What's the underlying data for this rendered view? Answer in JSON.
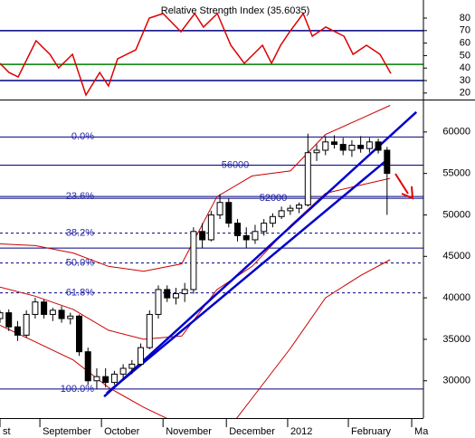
{
  "chart_data": [
    {
      "type": "line",
      "title": "Relative Strength Index (35.6035)",
      "x": [
        0,
        3.1,
        6.2,
        12.3,
        17,
        20,
        24.7,
        29.3,
        34,
        37,
        40.1,
        46.3,
        50.9,
        55.6,
        61.7,
        66.4,
        69.4,
        74.1,
        78.7,
        83.3,
        89.5,
        92.6,
        95.7,
        98.8,
        103.4,
        106.5,
        111.1,
        117.3,
        120.4,
        125,
        129.6,
        133.3
      ],
      "values": [
        43.8,
        36.5,
        32.9,
        61.9,
        51,
        40.1,
        51,
        18.4,
        36.5,
        25.7,
        47.4,
        54.6,
        80,
        83.6,
        69.1,
        83.6,
        72.8,
        83.6,
        58.3,
        43.8,
        58.3,
        43.8,
        58.3,
        69.1,
        83.6,
        65.5,
        72.8,
        65.5,
        51,
        58.3,
        51,
        35.6
      ],
      "color": "#dd0000",
      "xlim": [
        0,
        144.4
      ],
      "ylim": [
        14.8,
        94.5
      ],
      "yticks": [
        80,
        70,
        60,
        50,
        40,
        30,
        20
      ],
      "levels": [
        {
          "value": 70,
          "color": "#000080"
        },
        {
          "value": 30,
          "color": "#000080"
        },
        {
          "value": 43,
          "color": "#008000"
        }
      ]
    },
    {
      "type": "candlestick",
      "x": [
        0,
        3,
        6,
        9,
        12,
        15,
        18,
        21,
        24,
        27,
        30,
        33,
        36,
        39,
        42,
        45,
        48,
        51,
        54,
        57,
        60,
        63,
        66,
        69,
        72,
        75,
        78,
        81,
        84,
        87,
        90,
        93,
        96,
        99,
        102,
        105,
        108,
        111,
        114,
        117,
        120,
        123,
        126,
        129,
        132
      ],
      "open": [
        37500,
        38200,
        36500,
        35500,
        38000,
        39500,
        38000,
        38500,
        37500,
        37800,
        33500,
        30000,
        30500,
        29800,
        30800,
        31500,
        32000,
        34000,
        38000,
        41000,
        40000,
        40500,
        41000,
        48000,
        47000,
        50000,
        51500,
        49000,
        47500,
        47000,
        48000,
        49000,
        49800,
        50500,
        50800,
        51200,
        57500,
        57800,
        58800,
        58500,
        57800,
        58400,
        58000,
        58800,
        57800
      ],
      "high": [
        38500,
        38600,
        37200,
        38500,
        40000,
        39800,
        38800,
        39000,
        38200,
        38000,
        34000,
        31500,
        31500,
        31200,
        32000,
        32500,
        34500,
        38500,
        41500,
        41500,
        41200,
        41800,
        48500,
        49000,
        50500,
        52500,
        52000,
        49500,
        48500,
        48800,
        49500,
        50200,
        51000,
        51200,
        51500,
        59800,
        58500,
        59500,
        59600,
        59300,
        59000,
        59500,
        59300,
        59200,
        58200
      ],
      "low": [
        37000,
        36000,
        34800,
        35200,
        37500,
        37500,
        37200,
        37000,
        36800,
        33000,
        29500,
        29000,
        29200,
        29500,
        30200,
        30800,
        31800,
        33800,
        37500,
        39500,
        39200,
        39500,
        40500,
        46000,
        46800,
        49500,
        48500,
        46800,
        46000,
        46500,
        47500,
        48500,
        49500,
        50000,
        50200,
        51000,
        56500,
        57200,
        58000,
        57200,
        57000,
        57500,
        57500,
        57400,
        50000
      ],
      "close": [
        38200,
        36500,
        35500,
        38000,
        39500,
        38000,
        38500,
        37500,
        37800,
        33500,
        30000,
        30500,
        29800,
        30800,
        31500,
        32000,
        34000,
        38000,
        41000,
        40000,
        40500,
        41000,
        48000,
        47000,
        50000,
        51500,
        49000,
        47500,
        47000,
        48000,
        49000,
        49800,
        50500,
        50800,
        51200,
        57500,
        57800,
        58800,
        58500,
        57800,
        58400,
        58000,
        58800,
        57800,
        55000
      ],
      "bands": [
        {
          "x": [
            0,
            12,
            25,
            37,
            49,
            62,
            74,
            86,
            99,
            111,
            123,
            133
          ],
          "values": [
            46500,
            46300,
            45400,
            43800,
            43200,
            44100,
            52200,
            54700,
            55300,
            59700,
            61600,
            63200
          ],
          "color": "#cc0000"
        },
        {
          "x": [
            0,
            12,
            25,
            37,
            49,
            62,
            74,
            86,
            99,
            111,
            123,
            133
          ],
          "values": [
            41300,
            40200,
            38600,
            36100,
            35000,
            35400,
            41000,
            43800,
            48700,
            52600,
            53600,
            54400
          ],
          "color": "#cc0000"
        },
        {
          "x": [
            0,
            12,
            25,
            37,
            49,
            62,
            74,
            86,
            99,
            111,
            123,
            133
          ],
          "values": [
            36700,
            34700,
            32500,
            29200,
            26800,
            24600,
            22400,
            27900,
            33900,
            40000,
            42700,
            44600
          ],
          "color": "#cc0000"
        }
      ],
      "trendlines": [
        {
          "x": [
            35.5,
            142
          ],
          "values": [
            28100,
            62400
          ],
          "color": "#0000cc"
        },
        {
          "x": [
            36.4,
            131.2
          ],
          "values": [
            28500,
            56400
          ],
          "color": "#0000cc"
        }
      ],
      "levels": [
        {
          "value": 59400,
          "label": "0.0%",
          "style": "solid"
        },
        {
          "value": 56000,
          "label": "56000",
          "style": "solid"
        },
        {
          "value": 52000,
          "label": "52000",
          "style": "solid"
        },
        {
          "value": 52226,
          "label": "23.6%",
          "style": "solid"
        },
        {
          "value": 47800,
          "label": "38.2%",
          "style": "dashed"
        },
        {
          "value": 46000,
          "style": "solid"
        },
        {
          "value": 44200,
          "label": "50.0%",
          "style": "dashed"
        },
        {
          "value": 40600,
          "label": "61.8%",
          "style": "dashed"
        },
        {
          "value": 29000,
          "label": "100.0%",
          "style": "solid"
        }
      ],
      "xlim": [
        0,
        144.4
      ],
      "ylim": [
        25500,
        63800
      ],
      "yticks": [
        60000,
        55000,
        50000,
        45000,
        40000,
        35000,
        30000
      ],
      "xticks": [
        {
          "value": 0,
          "label": "st"
        },
        {
          "value": 13.6,
          "label": "September"
        },
        {
          "value": 34.6,
          "label": "October"
        },
        {
          "value": 55.6,
          "label": "November"
        },
        {
          "value": 77.2,
          "label": "December"
        },
        {
          "value": 98.1,
          "label": "2012"
        },
        {
          "value": 118.8,
          "label": "February"
        },
        {
          "value": 140.4,
          "label": "Ma"
        }
      ]
    }
  ]
}
